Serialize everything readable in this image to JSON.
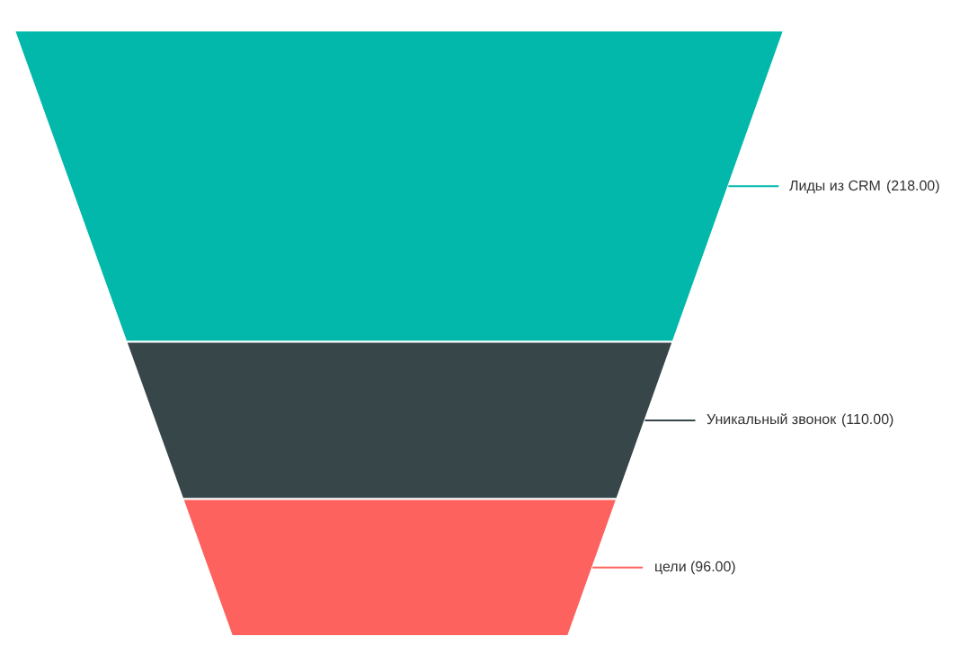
{
  "chart_data": {
    "type": "other",
    "categories": [
      "Лиды из CRM",
      "Уникальный звонок",
      "цели"
    ],
    "values": [
      218,
      110,
      96
    ],
    "value_labels": [
      "(218.00)",
      "(110.00)",
      "(96.00)"
    ],
    "colors": [
      "#01b8aa",
      "#374649",
      "#fd625e"
    ]
  }
}
